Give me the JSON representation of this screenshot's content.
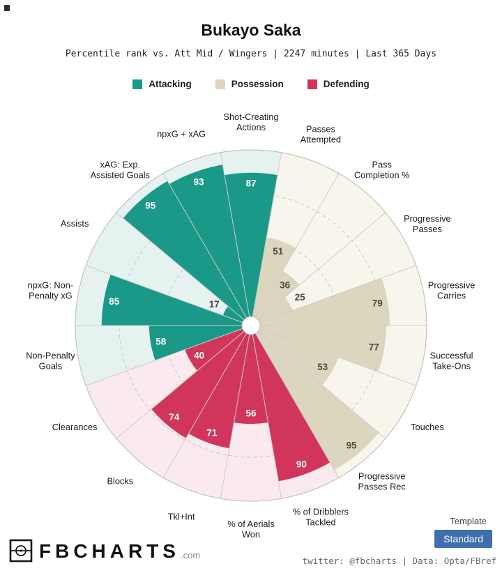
{
  "header": {
    "title": "Bukayo Saka",
    "subtitle": "Percentile rank vs. Att Mid / Wingers | 2247 minutes | Last 365 Days"
  },
  "legend": [
    {
      "label": "Attacking",
      "color": "#1a9988"
    },
    {
      "label": "Possession",
      "color": "#dcd6bf"
    },
    {
      "label": "Defending",
      "color": "#d2355b"
    }
  ],
  "footer": {
    "brand": "FBCHARTS",
    "brand_suffix": ".com",
    "template_label": "Template",
    "template_value": "Standard",
    "button_color": "#3f6eae",
    "credit": "twitter: @fbcharts | Data: Opta/FBref"
  },
  "chart_data": {
    "type": "bar",
    "layout": "polar-pizza",
    "title": "Bukayo Saka",
    "scale": [
      0,
      100
    ],
    "gridlines": [
      25,
      50,
      75
    ],
    "start_angle_deg": -10,
    "slice_deg": 20,
    "colors": {
      "grid": "#c7c7c7",
      "divider": "#cccccc",
      "outline": "#c2c2c2",
      "small_value_text": "#46453e"
    },
    "groups": [
      {
        "name": "Attacking",
        "color": "#1a9988",
        "pale": "#e6f2f0",
        "value_text": "#ffffff"
      },
      {
        "name": "Possession",
        "color": "#dcd6bf",
        "pale": "#f8f6ec",
        "value_text": "#4c4a3f"
      },
      {
        "name": "Defending",
        "color": "#d2355b",
        "pale": "#fae9ee",
        "value_text": "#ffffff"
      }
    ],
    "slices": [
      {
        "label": "Shot-Creating\nActions",
        "value": 87,
        "group": "Attacking"
      },
      {
        "label": "Passes\nAttempted",
        "value": 51,
        "group": "Possession"
      },
      {
        "label": "Pass\nCompletion %",
        "value": 36,
        "group": "Possession"
      },
      {
        "label": "Progressive\nPasses",
        "value": 25,
        "group": "Possession"
      },
      {
        "label": "Progressive\nCarries",
        "value": 79,
        "group": "Possession"
      },
      {
        "label": "Successful\nTake-Ons",
        "value": 77,
        "group": "Possession"
      },
      {
        "label": "Touches",
        "value": 53,
        "group": "Possession"
      },
      {
        "label": "Progressive\nPasses Rec",
        "value": 95,
        "group": "Possession"
      },
      {
        "label": "% of Dribblers\nTackled",
        "value": 90,
        "group": "Defending"
      },
      {
        "label": "% of Aerials\nWon",
        "value": 56,
        "group": "Defending"
      },
      {
        "label": "Tkl+Int",
        "value": 71,
        "group": "Defending"
      },
      {
        "label": "Blocks",
        "value": 74,
        "group": "Defending"
      },
      {
        "label": "Clearances",
        "value": 40,
        "group": "Defending"
      },
      {
        "label": "Non-Penalty\nGoals",
        "value": 58,
        "group": "Attacking"
      },
      {
        "label": "npxG: Non-\nPenalty xG",
        "value": 85,
        "group": "Attacking"
      },
      {
        "label": "Assists",
        "value": 17,
        "group": "Attacking"
      },
      {
        "label": "xAG: Exp.\nAssisted Goals",
        "value": 95,
        "group": "Attacking"
      },
      {
        "label": "npxG + xAG",
        "value": 93,
        "group": "Attacking"
      }
    ]
  }
}
